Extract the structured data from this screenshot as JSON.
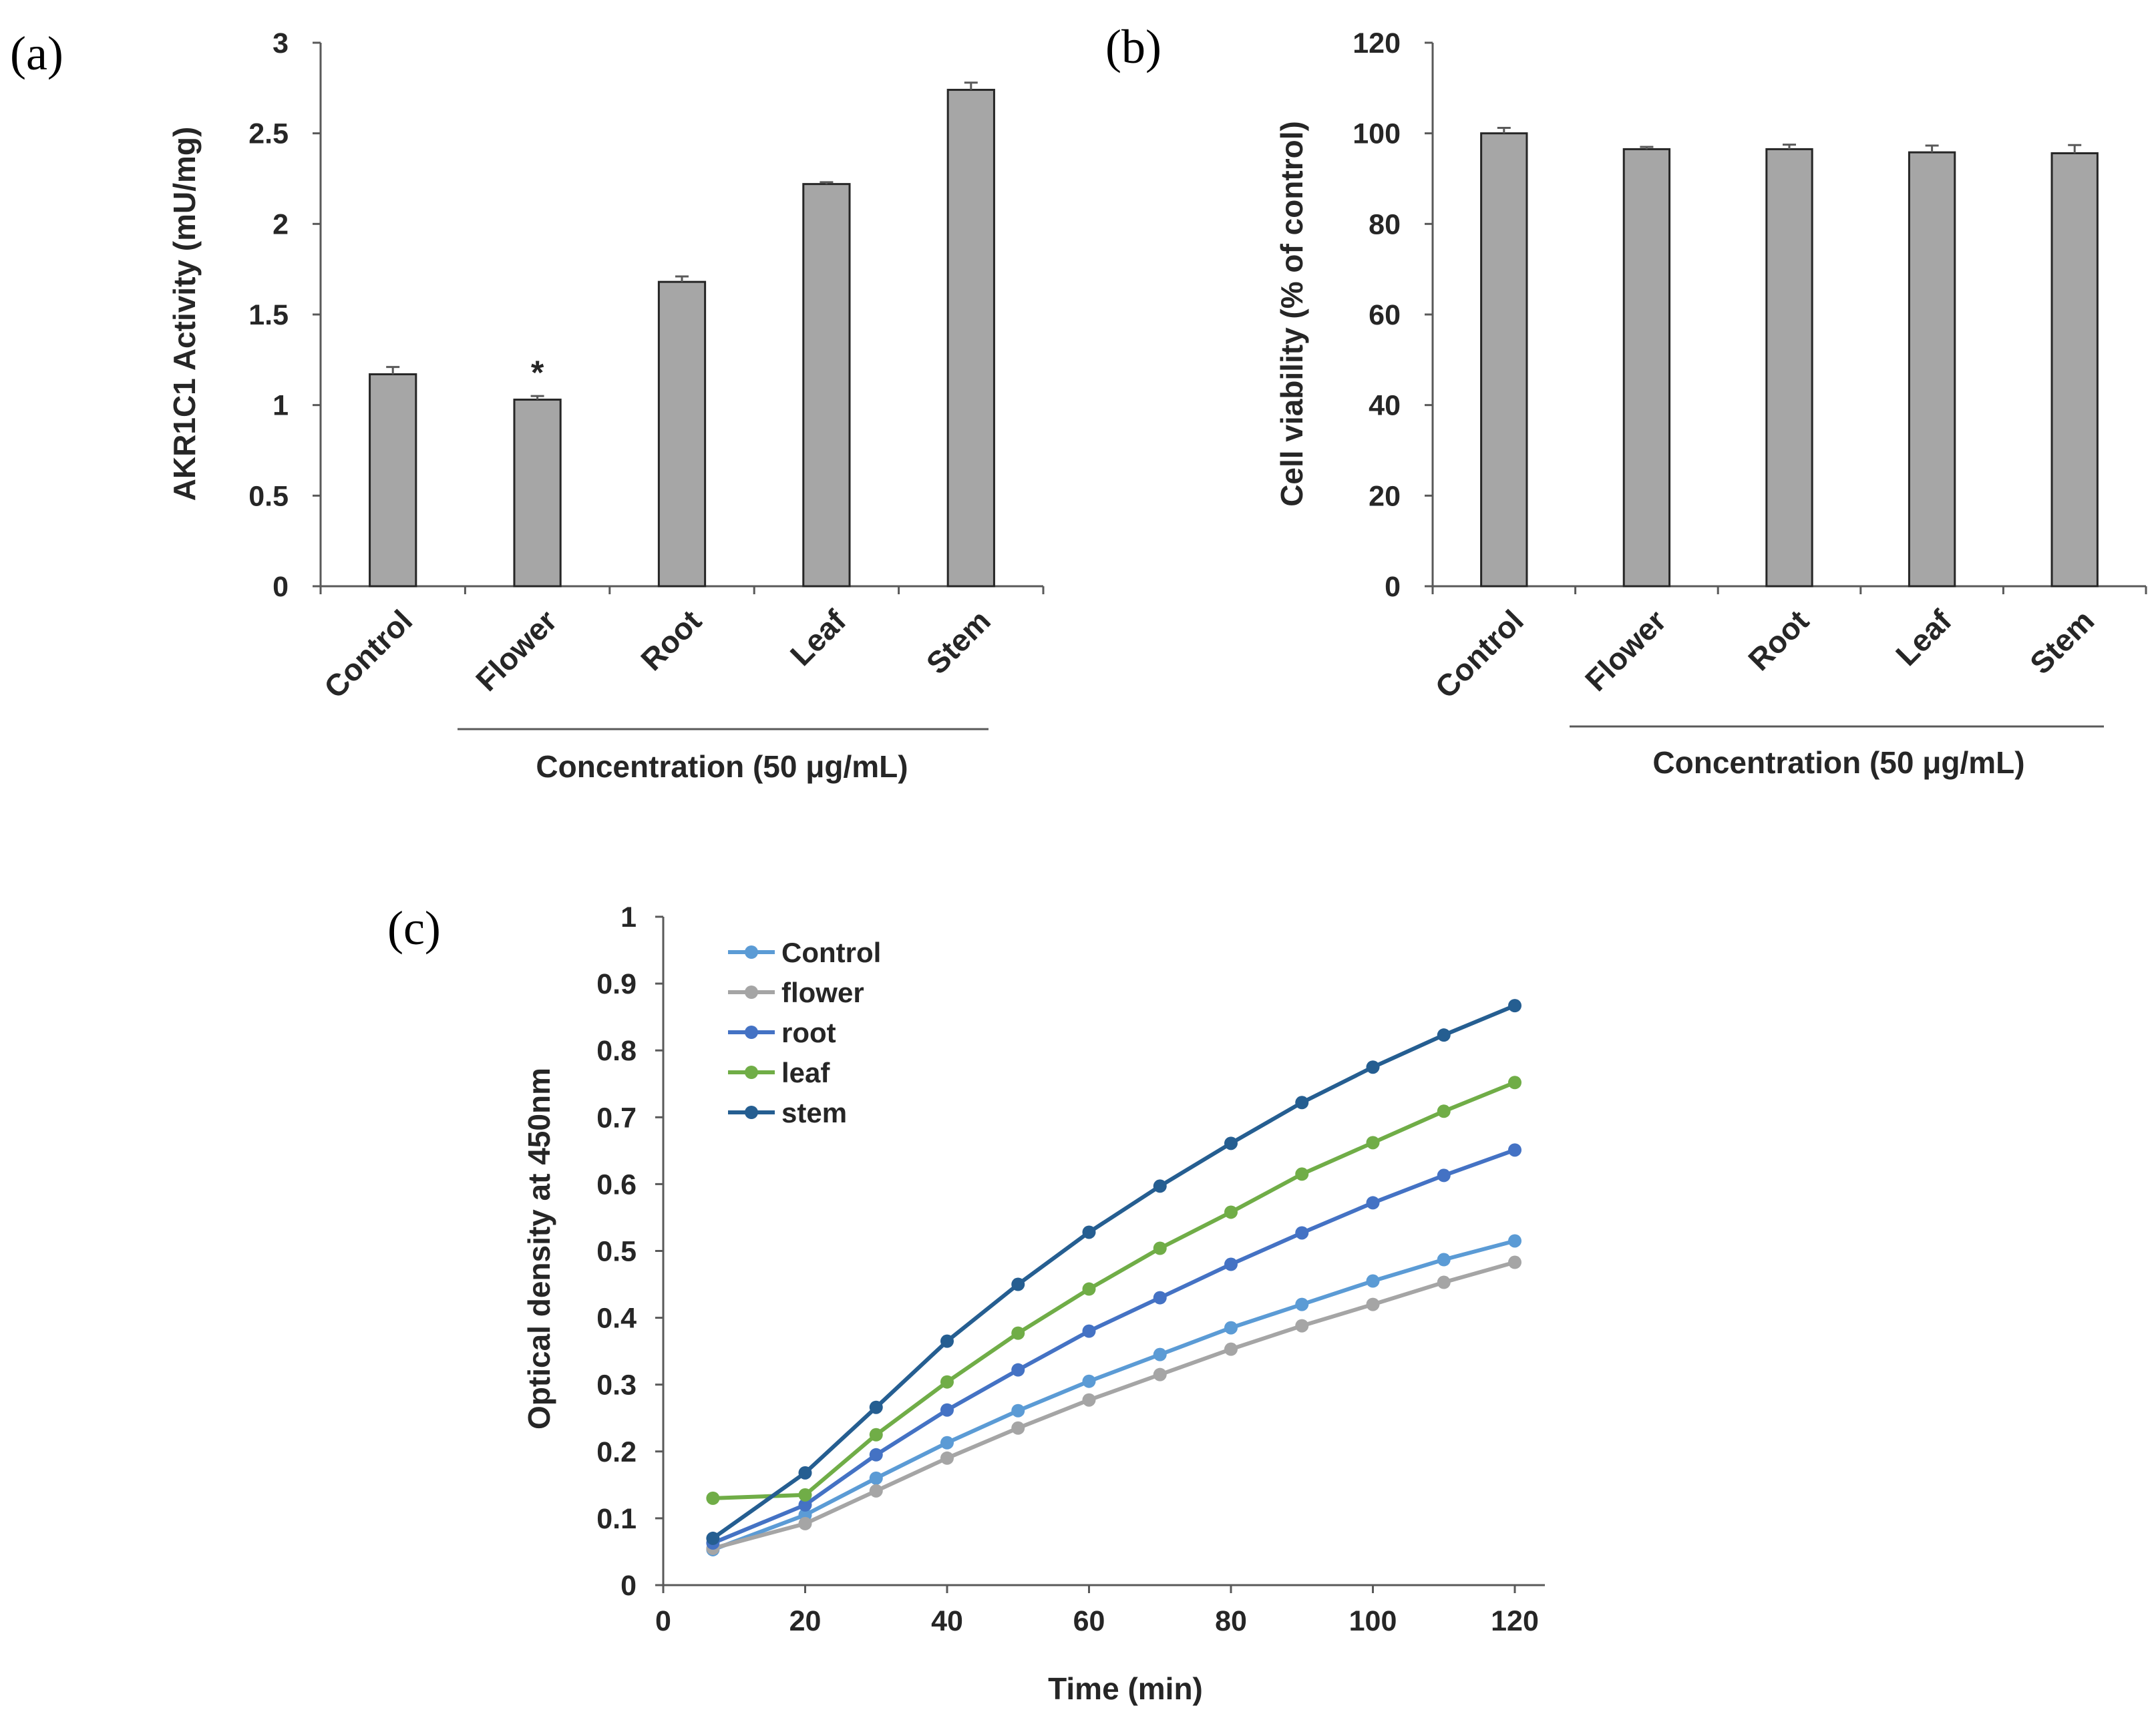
{
  "colors": {
    "bar_fill": "#a6a6a6",
    "bar_stroke": "#262626",
    "axis": "#595959",
    "text": "#262626"
  },
  "chart_data": [
    {
      "panel_label": "(a)",
      "type": "bar",
      "categories": [
        "Control",
        "Flower",
        "Root",
        "Leaf",
        "Stem"
      ],
      "values": [
        1.17,
        1.03,
        1.68,
        2.22,
        2.74
      ],
      "errors": [
        0.04,
        0.02,
        0.03,
        0.01,
        0.04
      ],
      "annotations": [
        {
          "category": "Flower",
          "text": "*"
        }
      ],
      "ylabel": "AKR1C1 Activity (mU/mg)",
      "xlabel": "Concentration (50 μg/mL)",
      "ylim": [
        0,
        3
      ],
      "yticks": [
        0,
        0.5,
        1,
        1.5,
        2,
        2.5,
        3
      ],
      "ytick_labels": [
        "0",
        "0.5",
        "1",
        "1.5",
        "2",
        "2.5",
        "3"
      ],
      "grid": false
    },
    {
      "panel_label": "(b)",
      "type": "bar",
      "categories": [
        "Control",
        "Flower",
        "Root",
        "Leaf",
        "Stem"
      ],
      "values": [
        100,
        96.5,
        96.5,
        95.8,
        95.6
      ],
      "errors": [
        1.2,
        0.5,
        1.0,
        1.5,
        1.8
      ],
      "ylabel": "Cell viability (% of control)",
      "xlabel": "Concentration (50 μg/mL)",
      "ylim": [
        0,
        120
      ],
      "yticks": [
        0,
        20,
        40,
        60,
        80,
        100,
        120
      ],
      "ytick_labels": [
        "0",
        "20",
        "40",
        "60",
        "80",
        "100",
        "120"
      ],
      "grid": false
    },
    {
      "panel_label": "(c)",
      "type": "line",
      "x": [
        7,
        20,
        30,
        40,
        50,
        60,
        70,
        80,
        90,
        100,
        110,
        120
      ],
      "series": [
        {
          "name": "Control",
          "color": "#5b9bd5",
          "values": [
            0.053,
            0.105,
            0.16,
            0.213,
            0.261,
            0.305,
            0.345,
            0.385,
            0.42,
            0.455,
            0.487,
            0.515
          ]
        },
        {
          "name": "flower",
          "color": "#a5a5a5",
          "values": [
            0.055,
            0.092,
            0.141,
            0.19,
            0.235,
            0.277,
            0.315,
            0.353,
            0.388,
            0.42,
            0.453,
            0.483
          ]
        },
        {
          "name": "root",
          "color": "#4472c4",
          "values": [
            0.063,
            0.12,
            0.195,
            0.262,
            0.322,
            0.38,
            0.43,
            0.48,
            0.527,
            0.572,
            0.613,
            0.651
          ]
        },
        {
          "name": "leaf",
          "color": "#70ad47",
          "values": [
            0.13,
            0.135,
            0.225,
            0.304,
            0.377,
            0.443,
            0.504,
            0.558,
            0.615,
            0.662,
            0.709,
            0.752
          ]
        },
        {
          "name": "stem",
          "color": "#255e91",
          "values": [
            0.07,
            0.168,
            0.266,
            0.365,
            0.45,
            0.528,
            0.597,
            0.661,
            0.722,
            0.775,
            0.823,
            0.867
          ]
        }
      ],
      "xlabel": "Time (min)",
      "ylabel": "Optical density at 450nm",
      "xlim": [
        0,
        120
      ],
      "ylim": [
        0,
        1
      ],
      "xticks": [
        0,
        20,
        40,
        60,
        80,
        100,
        120
      ],
      "xtick_labels": [
        "0",
        "20",
        "40",
        "60",
        "80",
        "100",
        "120"
      ],
      "yticks": [
        0,
        0.1,
        0.2,
        0.3,
        0.4,
        0.5,
        0.6,
        0.7,
        0.8,
        0.9,
        1
      ],
      "ytick_labels": [
        "0",
        "0.1",
        "0.2",
        "0.3",
        "0.4",
        "0.5",
        "0.6",
        "0.7",
        "0.8",
        "0.9",
        "1"
      ],
      "legend_position": "top-left",
      "grid": false
    }
  ]
}
